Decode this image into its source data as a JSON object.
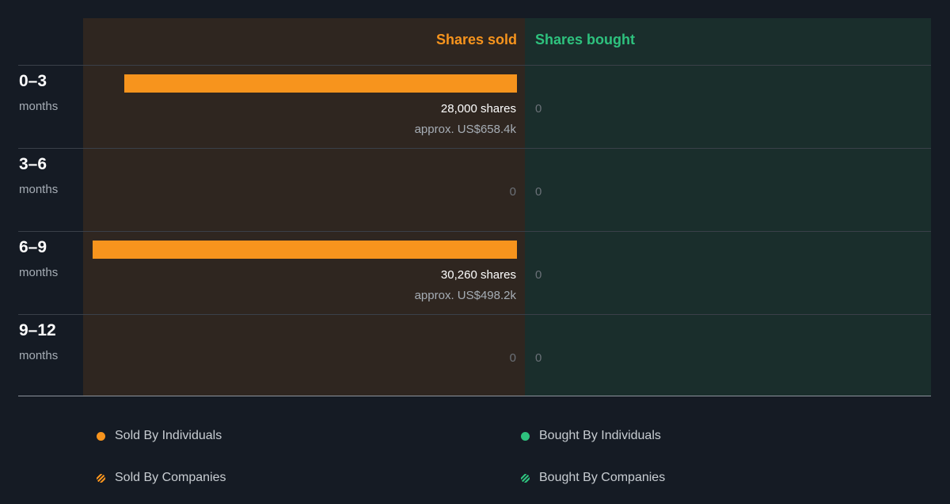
{
  "chart_data": {
    "type": "bar",
    "orientation": "horizontal",
    "column_headers": {
      "sold": "Shares sold",
      "bought": "Shares bought"
    },
    "categories": [
      {
        "period": "0–3",
        "unit": "months"
      },
      {
        "period": "3–6",
        "unit": "months"
      },
      {
        "period": "6–9",
        "unit": "months"
      },
      {
        "period": "9–12",
        "unit": "months"
      }
    ],
    "series": [
      {
        "name": "Shares sold",
        "values": [
          28000,
          0,
          30260,
          0
        ]
      },
      {
        "name": "Shares bought",
        "values": [
          0,
          0,
          0,
          0
        ]
      }
    ],
    "value_labels": {
      "sold": [
        "28,000 shares",
        "0",
        "30,260 shares",
        "0"
      ],
      "sold_approx": [
        "approx. US$658.4k",
        "",
        "approx. US$498.2k",
        ""
      ],
      "bought": [
        "0",
        "0",
        "0",
        "0"
      ]
    },
    "colors": {
      "sold": "#f7941d",
      "bought": "#2ec27e"
    },
    "legend": [
      {
        "label": "Sold By Individuals",
        "color": "#f7941d",
        "style": "solid"
      },
      {
        "label": "Bought By Individuals",
        "color": "#2ec27e",
        "style": "solid"
      },
      {
        "label": "Sold By Companies",
        "color": "#f7941d",
        "style": "striped"
      },
      {
        "label": "Bought By Companies",
        "color": "#2ec27e",
        "style": "striped"
      }
    ],
    "legend_position": "bottom"
  }
}
